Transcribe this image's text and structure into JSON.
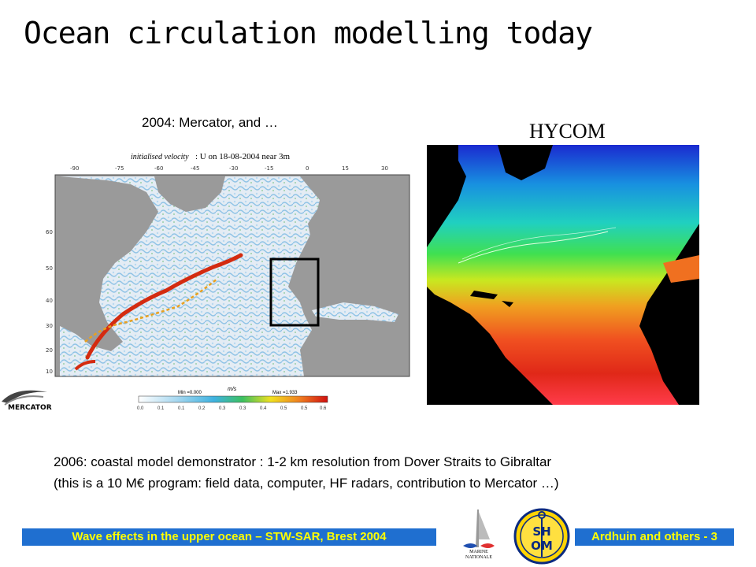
{
  "slide": {
    "title": "Ocean circulation modelling today",
    "subcaption": "2004: Mercator, and …",
    "hycom_label": "HYCOM",
    "caption_line1": "2006: coastal model demonstrator : 1-2 km resolution from Dover Straits to Gibraltar",
    "caption_line2": "(this is a 10 M€ program: field data, computer, HF radars, contribution to Mercator …)"
  },
  "mercator_map": {
    "header_prefix": "initialised velocity",
    "header_main": ": U on 18-08-2004 near 3m",
    "lon_ticks": [
      "-90",
      "-75",
      "-60",
      "-45",
      "-30",
      "-15",
      "0",
      "15",
      "30"
    ],
    "lat_ticks": [
      "60",
      "50",
      "40",
      "30",
      "20",
      "10"
    ],
    "unit": "m/s",
    "min_label": "Min =0.000",
    "max_label": "Max =1.933",
    "colorbar_ticks": [
      "0.0",
      "0.1",
      "0.1",
      "0.2",
      "0.3",
      "0.3",
      "0.4",
      "0.5",
      "0.5",
      "0.6"
    ]
  },
  "logos": {
    "mercator": "MERCATOR",
    "marine_line1": "MARINE",
    "marine_line2": "NATIONALE",
    "shom_top": "SH",
    "shom_bottom": "OM"
  },
  "footer": {
    "left": "Wave effects in the upper ocean – STW-SAR, Brest 2004",
    "right": "Ardhuin and others - 3"
  }
}
